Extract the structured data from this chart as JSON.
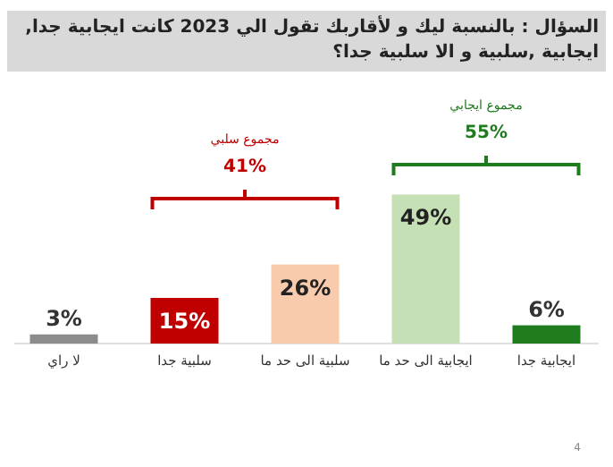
{
  "chart_data": {
    "type": "bar",
    "title": "السؤال : بالنسبة ليك و لأقاربك تقول الي 2023 كانت ايجابية جدا, ايجابية ,سلبية و الا سلبية جدا؟",
    "categories": [
      "لا راي",
      "سلبية جدا",
      "سلبية الى حد ما",
      "ايجابية الى حد ما",
      "ايجابية جدا"
    ],
    "values": [
      3,
      15,
      26,
      49,
      6
    ],
    "colors": [
      "#8c8c8c",
      "#c00000",
      "#f8cbad",
      "#c5e0b4",
      "#1e7b1e"
    ],
    "value_labels": [
      "3%",
      "15%",
      "26%",
      "49%",
      "6%"
    ],
    "annotations": [
      "مجموع سلبي",
      "41%",
      "مجموع ايجابي",
      "55%",
      "4"
    ]
  }
}
